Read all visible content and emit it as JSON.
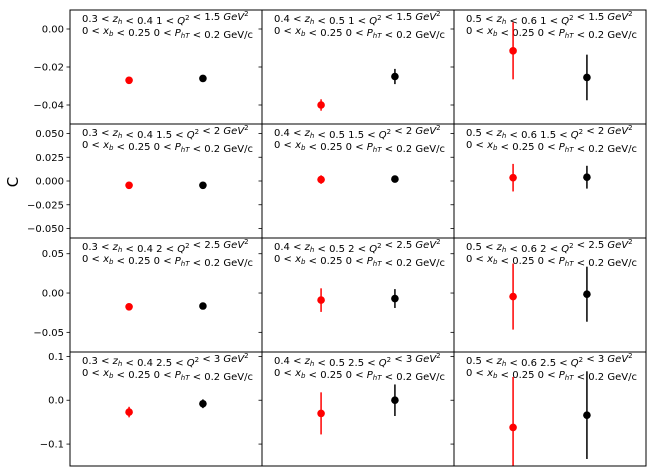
{
  "chart_data": {
    "type": "scatter",
    "ylabel": "C",
    "grid": false,
    "colors": {
      "series_a": "#ff0000",
      "series_b": "#000000"
    },
    "rows": [
      {
        "ylim": [
          -0.05,
          0.01
        ],
        "yticks": [
          0.0,
          -0.02,
          -0.04
        ],
        "ytick_labels": [
          "0.00",
          "−0.02",
          "−0.04"
        ],
        "q2_label": "Q² 1-1.5",
        "panels": [
          {
            "zh": "0.3 < z_h < 0.4",
            "q2": "1 < Q² < 1.5 GeV²",
            "points": [
              {
                "x": 1,
                "y": -0.027,
                "err": 0.0012,
                "series": "red"
              },
              {
                "x": 2,
                "y": -0.026,
                "err": 0.001,
                "series": "black"
              }
            ]
          },
          {
            "zh": "0.4 < z_h < 0.5",
            "q2": "1 < Q² < 1.5 GeV²",
            "points": [
              {
                "x": 1,
                "y": -0.04,
                "err": 0.003,
                "series": "red"
              },
              {
                "x": 2,
                "y": -0.025,
                "err": 0.004,
                "series": "black"
              }
            ]
          },
          {
            "zh": "0.5 < z_h < 0.6",
            "q2": "1 < Q² < 1.5 GeV²",
            "points": [
              {
                "x": 1,
                "y": -0.0115,
                "err": 0.015,
                "series": "red"
              },
              {
                "x": 2,
                "y": -0.0255,
                "err": 0.012,
                "series": "black"
              }
            ]
          }
        ]
      },
      {
        "ylim": [
          -0.06,
          0.06
        ],
        "yticks": [
          0.05,
          0.025,
          0.0,
          -0.025,
          -0.05
        ],
        "ytick_labels": [
          "0.050",
          "0.025",
          "0.000",
          "−0.025",
          "−0.050"
        ],
        "q2_label": "Q² 1.5-2",
        "panels": [
          {
            "zh": "0.3 < z_h < 0.4",
            "q2": "1.5 < Q² < 2 GeV²",
            "points": [
              {
                "x": 1,
                "y": -0.0045,
                "err": 0.0015,
                "series": "red"
              },
              {
                "x": 2,
                "y": -0.0045,
                "err": 0.0015,
                "series": "black"
              }
            ]
          },
          {
            "zh": "0.4 < z_h < 0.5",
            "q2": "1.5 < Q² < 2 GeV²",
            "points": [
              {
                "x": 1,
                "y": 0.0015,
                "err": 0.0045,
                "series": "red"
              },
              {
                "x": 2,
                "y": 0.002,
                "err": 0.003,
                "series": "black"
              }
            ]
          },
          {
            "zh": "0.5 < z_h < 0.6",
            "q2": "1.5 < Q² < 2 GeV²",
            "points": [
              {
                "x": 1,
                "y": 0.0035,
                "err": 0.0145,
                "series": "red"
              },
              {
                "x": 2,
                "y": 0.004,
                "err": 0.012,
                "series": "black"
              }
            ]
          }
        ]
      },
      {
        "ylim": [
          -0.075,
          0.07
        ],
        "yticks": [
          0.05,
          0.0,
          -0.05
        ],
        "ytick_labels": [
          "0.05",
          "0.00",
          "−0.05"
        ],
        "q2_label": "Q² 2-2.5",
        "panels": [
          {
            "zh": "0.3 < z_h < 0.4",
            "q2": "2 < Q² < 2.5 GeV²",
            "points": [
              {
                "x": 1,
                "y": -0.0175,
                "err": 0.002,
                "series": "red"
              },
              {
                "x": 2,
                "y": -0.0165,
                "err": 0.0015,
                "series": "black"
              }
            ]
          },
          {
            "zh": "0.4 < z_h < 0.5",
            "q2": "2 < Q² < 2.5 GeV²",
            "points": [
              {
                "x": 1,
                "y": -0.009,
                "err": 0.015,
                "series": "red"
              },
              {
                "x": 2,
                "y": -0.007,
                "err": 0.012,
                "series": "black"
              }
            ]
          },
          {
            "zh": "0.5 < z_h < 0.6",
            "q2": "2 < Q² < 2.5 GeV²",
            "points": [
              {
                "x": 1,
                "y": -0.0045,
                "err": 0.042,
                "series": "red"
              },
              {
                "x": 2,
                "y": -0.0015,
                "err": 0.035,
                "series": "black"
              }
            ]
          }
        ]
      },
      {
        "ylim": [
          -0.15,
          0.11
        ],
        "yticks": [
          0.1,
          0.0,
          -0.1
        ],
        "ytick_labels": [
          "0.1",
          "0.0",
          "−0.1"
        ],
        "q2_label": "Q² 2.5-3",
        "panels": [
          {
            "zh": "0.3 < z_h < 0.4",
            "q2": "2.5 < Q² < 3 GeV²",
            "points": [
              {
                "x": 1,
                "y": -0.027,
                "err": 0.012,
                "series": "red"
              },
              {
                "x": 2,
                "y": -0.008,
                "err": 0.01,
                "series": "black"
              }
            ]
          },
          {
            "zh": "0.4 < z_h < 0.5",
            "q2": "2.5 < Q² < 3 GeV²",
            "points": [
              {
                "x": 1,
                "y": -0.03,
                "err": 0.048,
                "series": "red"
              },
              {
                "x": 2,
                "y": 0.0,
                "err": 0.036,
                "series": "black"
              }
            ]
          },
          {
            "zh": "0.5 < z_h < 0.6",
            "q2": "2.5 < Q² < 3 GeV²",
            "points": [
              {
                "x": 1,
                "y": -0.062,
                "err": 0.115,
                "series": "red"
              },
              {
                "x": 2,
                "y": -0.034,
                "err": 0.1,
                "series": "black"
              }
            ]
          }
        ]
      }
    ],
    "common_labels": {
      "xb": "0 < x_b < 0.25",
      "pht": "0 < P_hT < 0.2 GeV/c"
    }
  }
}
